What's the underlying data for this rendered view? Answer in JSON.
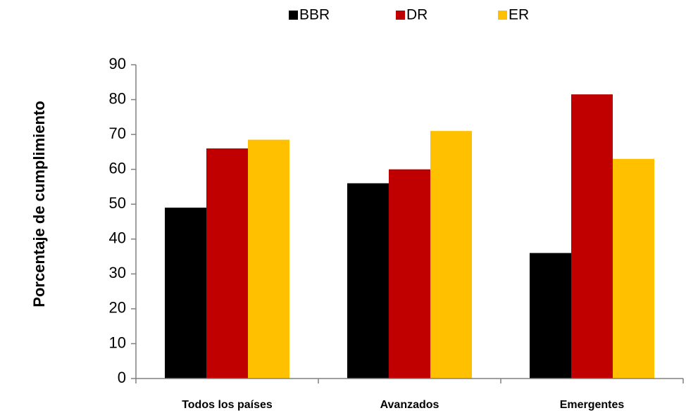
{
  "chart_data": {
    "type": "bar",
    "ylabel": "Porcentaje de cumplimiento",
    "categories": [
      "Todos los países",
      "Avanzados",
      "Emergentes"
    ],
    "series": [
      {
        "name": "BBR",
        "color": "#000000",
        "values": [
          49,
          56,
          36
        ]
      },
      {
        "name": "DR",
        "color": "#c00000",
        "values": [
          66,
          60,
          81.5
        ]
      },
      {
        "name": "ER",
        "color": "#ffc000",
        "values": [
          68.5,
          71,
          63
        ]
      }
    ],
    "ylim": [
      0,
      90
    ],
    "yticks": [
      0,
      10,
      20,
      30,
      40,
      50,
      60,
      70,
      80,
      90
    ],
    "legend": "top",
    "grid": false
  }
}
